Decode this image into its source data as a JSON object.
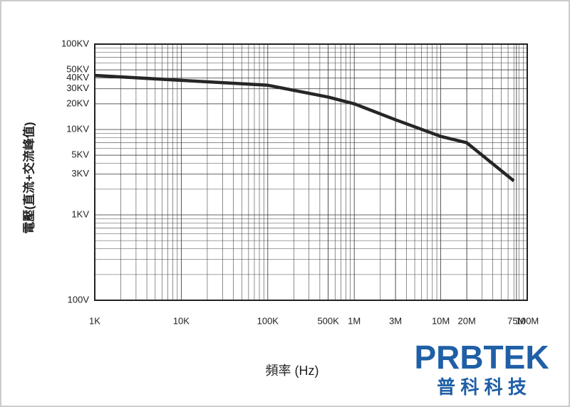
{
  "chart_data": {
    "type": "line",
    "x_label": "頻率 (Hz)",
    "y_label": "電壓(直流+交流峰值)",
    "x": [
      1000,
      100000,
      500000,
      1000000,
      3000000,
      10000000,
      20000000,
      70000000
    ],
    "values": [
      43000,
      33000,
      24000,
      20000,
      13000,
      8300,
      7000,
      2500
    ],
    "color": "#262626",
    "x_log": true,
    "y_log": true,
    "xlim": [
      1000,
      100000000
    ],
    "ylim": [
      100,
      100000
    ],
    "xticks": [
      {
        "value": 1000,
        "label": "1K"
      },
      {
        "value": 10000,
        "label": "10K"
      },
      {
        "value": 100000,
        "label": "100K"
      },
      {
        "value": 500000,
        "label": "500K"
      },
      {
        "value": 1000000,
        "label": "1M"
      },
      {
        "value": 3000000,
        "label": "3M"
      },
      {
        "value": 10000000,
        "label": "10M"
      },
      {
        "value": 20000000,
        "label": "20M"
      },
      {
        "value": 75000000,
        "label": "75M"
      },
      {
        "value": 100000000,
        "label": "100M"
      }
    ],
    "yticks": [
      {
        "value": 100,
        "label": "100V"
      },
      {
        "value": 1000,
        "label": "1KV"
      },
      {
        "value": 3000,
        "label": "3KV"
      },
      {
        "value": 5000,
        "label": "5KV"
      },
      {
        "value": 10000,
        "label": "10KV"
      },
      {
        "value": 20000,
        "label": "20KV"
      },
      {
        "value": 30000,
        "label": "30KV"
      },
      {
        "value": 40000,
        "label": "40KV"
      },
      {
        "value": 50000,
        "label": "50KV"
      },
      {
        "value": 100000,
        "label": "100KV"
      }
    ],
    "grid": true
  },
  "logo": {
    "name": "PRBTEK",
    "subtitle": "普 科 科 技"
  }
}
